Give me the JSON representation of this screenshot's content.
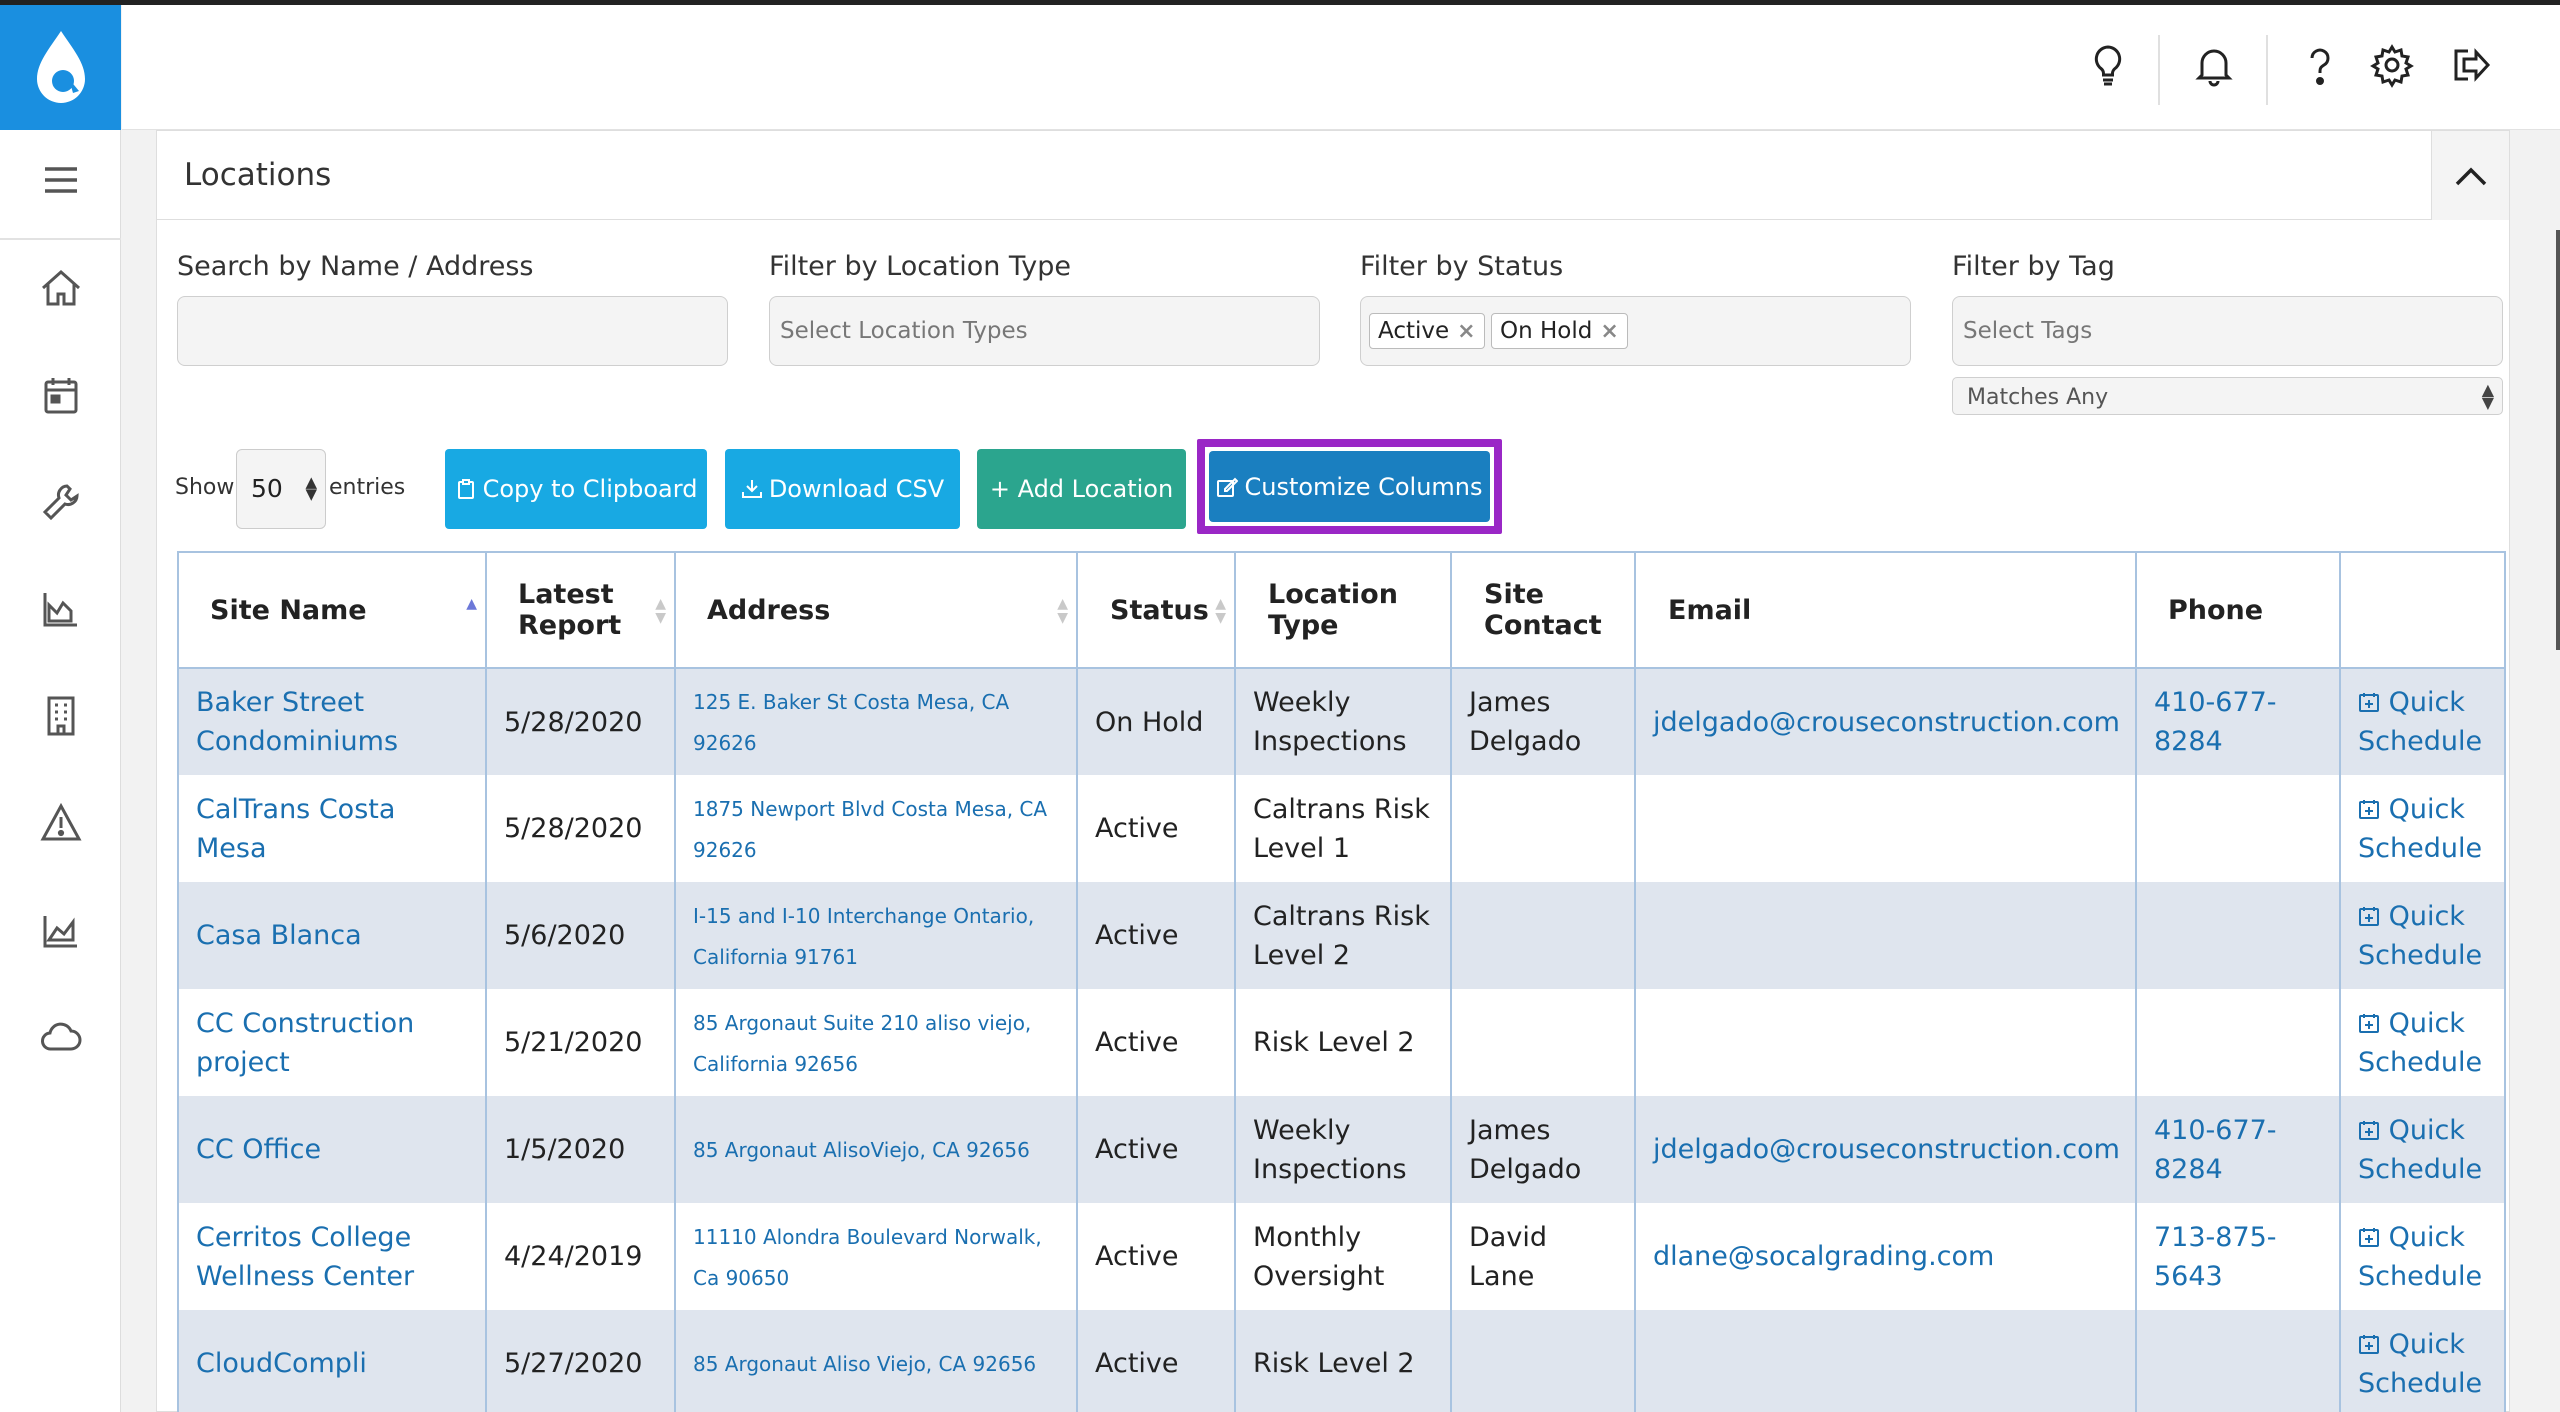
{
  "header": {
    "icons": [
      "lightbulb-icon",
      "bell-icon",
      "help-icon",
      "gear-icon",
      "logout-icon"
    ]
  },
  "sidebar": {
    "items": [
      "menu-icon",
      "home-icon",
      "calendar-icon",
      "wrench-icon",
      "chart-icon",
      "building-icon",
      "warning-icon",
      "area-chart-icon",
      "cloud-icon"
    ]
  },
  "panel": {
    "title": "Locations"
  },
  "filters": {
    "search_label": "Search by Name / Address",
    "search_value": "",
    "type_label": "Filter by Location Type",
    "type_placeholder": "Select Location Types",
    "status_label": "Filter by Status",
    "status_chips": [
      "Active",
      "On Hold"
    ],
    "tag_label": "Filter by Tag",
    "tag_placeholder": "Select Tags",
    "match_value": "Matches Any"
  },
  "controls": {
    "show_label": "Show",
    "entries_value": "50",
    "entries_label": "entries",
    "copy_label": "Copy to Clipboard",
    "download_label": "Download CSV",
    "add_label": "+ Add Location",
    "customize_label": "Customize Columns"
  },
  "table": {
    "headers": [
      "Site Name",
      "Latest Report",
      "Address",
      "Status",
      "Location Type",
      "Site Contact",
      "Email",
      "Phone",
      ""
    ],
    "quick_schedule": "Quick Schedule",
    "rows": [
      {
        "site": "Baker Street Condominiums",
        "report": "5/28/2020",
        "address": "125 E. Baker St Costa Mesa, CA 92626",
        "status": "On Hold",
        "type": "Weekly Inspections",
        "contact": "James Delgado",
        "email": "jdelgado@crouseconstruction.com",
        "phone": "410-677-8284"
      },
      {
        "site": "CalTrans Costa Mesa",
        "report": "5/28/2020",
        "address": "1875 Newport Blvd Costa Mesa, CA 92626",
        "status": "Active",
        "type": "Caltrans Risk Level 1",
        "contact": "",
        "email": "",
        "phone": ""
      },
      {
        "site": "Casa Blanca",
        "report": "5/6/2020",
        "address": "I-15 and I-10 Interchange Ontario, California 91761",
        "status": "Active",
        "type": "Caltrans Risk Level 2",
        "contact": "",
        "email": "",
        "phone": ""
      },
      {
        "site": "CC Construction project",
        "report": "5/21/2020",
        "address": "85 Argonaut Suite 210 aliso viejo, California 92656",
        "status": "Active",
        "type": "Risk Level 2",
        "contact": "",
        "email": "",
        "phone": ""
      },
      {
        "site": "CC Office",
        "report": "1/5/2020",
        "address": "85 Argonaut AlisoViejo, CA 92656",
        "status": "Active",
        "type": "Weekly Inspections",
        "contact": "James Delgado",
        "email": "jdelgado@crouseconstruction.com",
        "phone": "410-677-8284"
      },
      {
        "site": "Cerritos College Wellness Center",
        "report": "4/24/2019",
        "address": "11110 Alondra Boulevard Norwalk, Ca 90650",
        "status": "Active",
        "type": "Monthly Oversight",
        "contact": "David Lane",
        "email": "dlane@socalgrading.com",
        "phone": "713-875-5643"
      },
      {
        "site": "CloudCompli",
        "report": "5/27/2020",
        "address": "85 Argonaut Aliso Viejo, CA 92656",
        "status": "Active",
        "type": "Risk Level 2",
        "contact": "",
        "email": "",
        "phone": ""
      }
    ]
  },
  "colors": {
    "brand": "#1a8fe0",
    "button_cyan": "#18a9e3",
    "button_green": "#2ba58e",
    "highlight_frame": "#9a27c6",
    "link": "#1a6fb0"
  }
}
